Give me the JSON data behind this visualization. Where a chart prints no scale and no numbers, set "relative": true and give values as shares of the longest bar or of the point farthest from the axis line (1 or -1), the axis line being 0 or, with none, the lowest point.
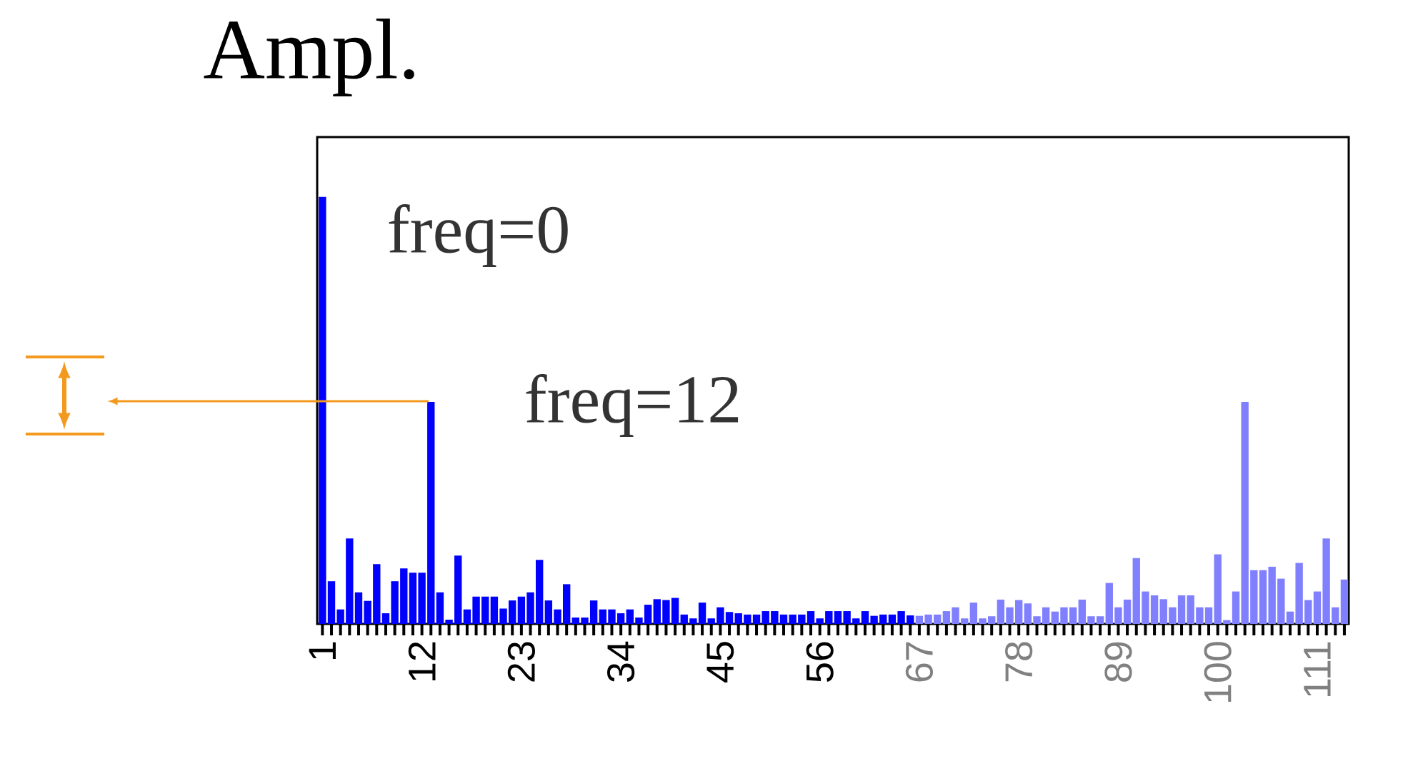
{
  "chart_data": {
    "type": "bar",
    "relative": true,
    "ylabel": "Ampl.",
    "annotations": [
      "freq=0",
      "freq=12"
    ],
    "categories": [
      "1",
      null,
      null,
      null,
      null,
      null,
      null,
      null,
      null,
      null,
      null,
      "12",
      null,
      null,
      null,
      null,
      null,
      null,
      null,
      null,
      null,
      null,
      "23",
      null,
      null,
      null,
      null,
      null,
      null,
      null,
      null,
      null,
      null,
      "34",
      null,
      null,
      null,
      null,
      null,
      null,
      null,
      null,
      null,
      null,
      "45",
      null,
      null,
      null,
      null,
      null,
      null,
      null,
      null,
      null,
      null,
      "56",
      null,
      null,
      null,
      null,
      null,
      null,
      null,
      null,
      null,
      null,
      "67",
      null,
      null,
      null,
      null,
      null,
      null,
      null,
      null,
      null,
      null,
      "78",
      null,
      null,
      null,
      null,
      null,
      null,
      null,
      null,
      null,
      null,
      "89",
      null,
      null,
      null,
      null,
      null,
      null,
      null,
      null,
      null,
      null,
      "100",
      null,
      null,
      null,
      null,
      null,
      null,
      null,
      null,
      null,
      null,
      "111",
      null,
      null,
      null
    ],
    "values": [
      1,
      0.1,
      0.034,
      0.2,
      0.074,
      0.054,
      0.14,
      0.025,
      0.1,
      0.13,
      0.12,
      0.12,
      0.52,
      0.074,
      0.01,
      0.16,
      0.034,
      0.064,
      0.064,
      0.064,
      0.036,
      0.055,
      0.064,
      0.074,
      0.15,
      0.055,
      0.034,
      0.093,
      0.015,
      0.015,
      0.055,
      0.034,
      0.034,
      0.025,
      0.034,
      0.015,
      0.045,
      0.058,
      0.056,
      0.061,
      0.022,
      0.013,
      0.05,
      0.013,
      0.039,
      0.028,
      0.025,
      0.022,
      0.022,
      0.03,
      0.03,
      0.022,
      0.022,
      0.022,
      0.03,
      0.013,
      0.03,
      0.03,
      0.03,
      0.013,
      0.03,
      0.019,
      0.022,
      0.022,
      0.03,
      0.02,
      0.019,
      0.022,
      0.022,
      0.03,
      0.039,
      0.013,
      0.05,
      0.013,
      0.018,
      0.057,
      0.039,
      0.056,
      0.048,
      0.018,
      0.039,
      0.029,
      0.039,
      0.039,
      0.057,
      0.018,
      0.018,
      0.096,
      0.039,
      0.057,
      0.154,
      0.076,
      0.067,
      0.058,
      0.039,
      0.067,
      0.067,
      0.039,
      0.039,
      0.163,
      0.009,
      0.076,
      0.52,
      0.126,
      0.126,
      0.134,
      0.106,
      0.029,
      0.143,
      0.056,
      0.076,
      0.2,
      0.039,
      0.104
    ],
    "colors": [
      "#0000ff",
      "#0000ff",
      "#0000ff",
      "#0000ff",
      "#0000ff",
      "#0000ff",
      "#0000ff",
      "#0000ff",
      "#0000ff",
      "#0000ff",
      "#0000ff",
      "#0000ff",
      "#0000ff",
      "#0000ff",
      "#0000ff",
      "#0000ff",
      "#0000ff",
      "#0000ff",
      "#0000ff",
      "#0000ff",
      "#0000ff",
      "#0000ff",
      "#0000ff",
      "#0000ff",
      "#0000ff",
      "#0000ff",
      "#0000ff",
      "#0000ff",
      "#0000ff",
      "#0000ff",
      "#0000ff",
      "#0000ff",
      "#0000ff",
      "#0000ff",
      "#0000ff",
      "#0000ff",
      "#0000ff",
      "#0000ff",
      "#0000ff",
      "#0000ff",
      "#0000ff",
      "#0000ff",
      "#0000ff",
      "#0000ff",
      "#0000ff",
      "#0000ff",
      "#0000ff",
      "#0000ff",
      "#0000ff",
      "#0000ff",
      "#0000ff",
      "#0000ff",
      "#0000ff",
      "#0000ff",
      "#0000ff",
      "#0000ff",
      "#0000ff",
      "#0000ff",
      "#0000ff",
      "#0000ff",
      "#0000ff",
      "#0000ff",
      "#0000ff",
      "#0000ff",
      "#0000ff",
      "#0000ff",
      "#8080ff",
      "#8080ff",
      "#8080ff",
      "#8080ff",
      "#8080ff",
      "#8080ff",
      "#8080ff",
      "#8080ff",
      "#8080ff",
      "#8080ff",
      "#8080ff",
      "#8080ff",
      "#8080ff",
      "#8080ff",
      "#8080ff",
      "#8080ff",
      "#8080ff",
      "#8080ff",
      "#8080ff",
      "#8080ff",
      "#8080ff",
      "#8080ff",
      "#8080ff",
      "#8080ff",
      "#8080ff",
      "#8080ff",
      "#8080ff",
      "#8080ff",
      "#8080ff",
      "#8080ff",
      "#8080ff",
      "#8080ff",
      "#8080ff",
      "#8080ff",
      "#8080ff",
      "#8080ff",
      "#8080ff",
      "#8080ff",
      "#8080ff",
      "#8080ff",
      "#8080ff",
      "#8080ff",
      "#8080ff",
      "#8080ff",
      "#8080ff",
      "#8080ff",
      "#8080ff",
      "#8080ff"
    ]
  }
}
